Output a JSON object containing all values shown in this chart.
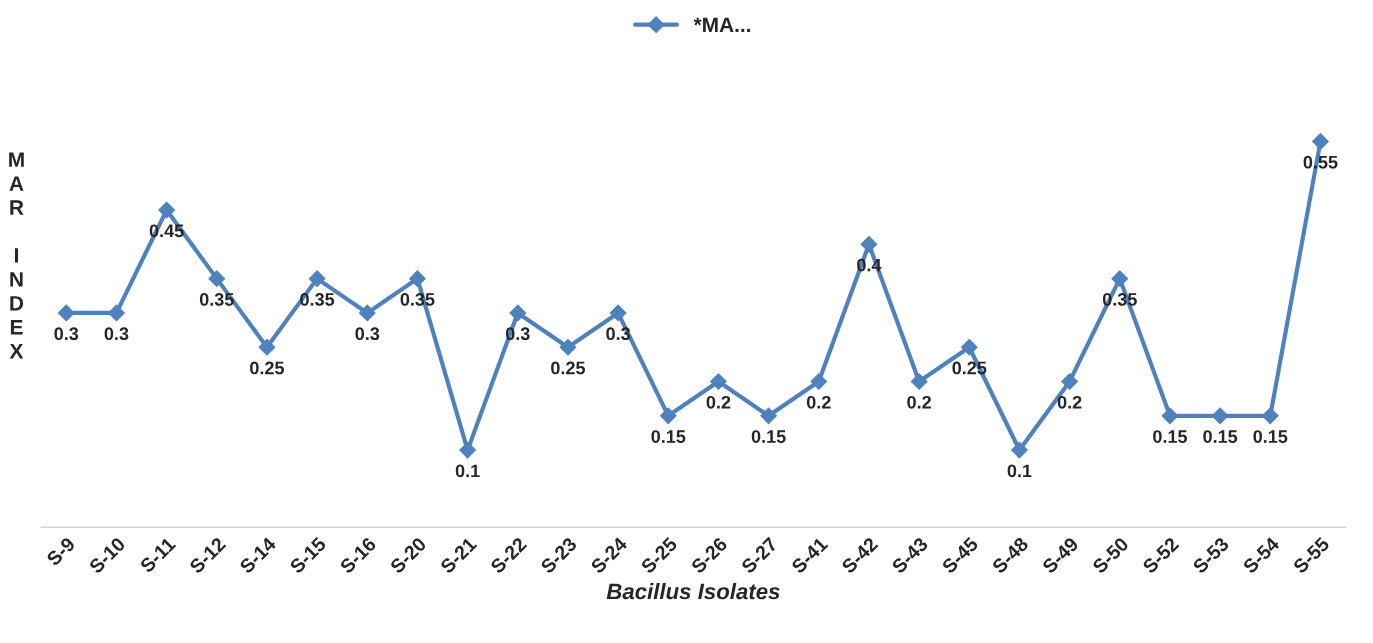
{
  "chart_data": {
    "type": "line",
    "categories": [
      "S-9",
      "S-10",
      "S-11",
      "S-12",
      "S-14",
      "S-15",
      "S-16",
      "S-20",
      "S-21",
      "S-22",
      "S-23",
      "S-24",
      "S-25",
      "S-26",
      "S-27",
      "S-41",
      "S-42",
      "S-43",
      "S-45",
      "S-48",
      "S-49",
      "S-50",
      "S-52",
      "S-53",
      "S-54",
      "S-55"
    ],
    "series": [
      {
        "name": "*MA...",
        "color": "#4f81bd",
        "values": [
          0.3,
          0.3,
          0.45,
          0.35,
          0.25,
          0.35,
          0.3,
          0.35,
          0.1,
          0.3,
          0.25,
          0.3,
          0.15,
          0.2,
          0.15,
          0.2,
          0.4,
          0.2,
          0.25,
          0.1,
          0.2,
          0.35,
          0.15,
          0.15,
          0.15,
          0.55
        ]
      }
    ],
    "xlabel": "Bacillus Isolates",
    "ylabel": "MAR INDEX",
    "tick_labels": "x",
    "marker": "diamond",
    "line_style": "solid",
    "data_labels": true,
    "legend": "top",
    "grid": false
  }
}
